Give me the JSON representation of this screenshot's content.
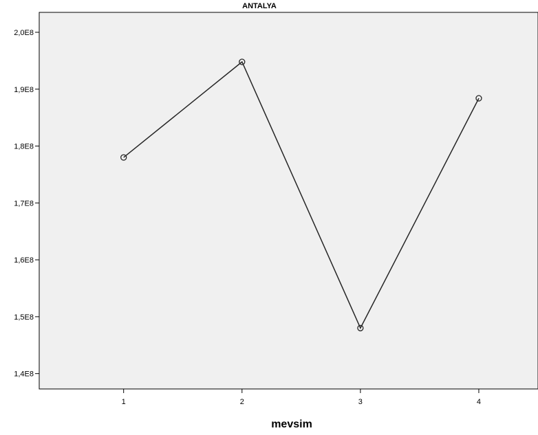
{
  "chart_data": {
    "type": "line",
    "title": "ANTALYA",
    "xlabel": "mevsim",
    "ylabel": "",
    "x": [
      1,
      2,
      3,
      4
    ],
    "x_tick_labels": [
      "1",
      "2",
      "3",
      "4"
    ],
    "values": [
      178000000,
      194800000,
      148000000,
      188400000
    ],
    "y_ticks": [
      140000000,
      150000000,
      160000000,
      170000000,
      180000000,
      190000000,
      200000000
    ],
    "y_tick_labels": [
      "1,4E8",
      "1,5E8",
      "1,6E8",
      "1,7E8",
      "1,8E8",
      "1,9E8",
      "2,0E8"
    ],
    "xlim": [
      0.287,
      4.5
    ],
    "ylim": [
      137300000,
      203500000
    ],
    "grid": false,
    "marker": "open-circle",
    "colors": {
      "plot_background": "#f0f0f0",
      "line": "#262626",
      "axis": "#000000",
      "page_background": "#ffffff"
    }
  }
}
